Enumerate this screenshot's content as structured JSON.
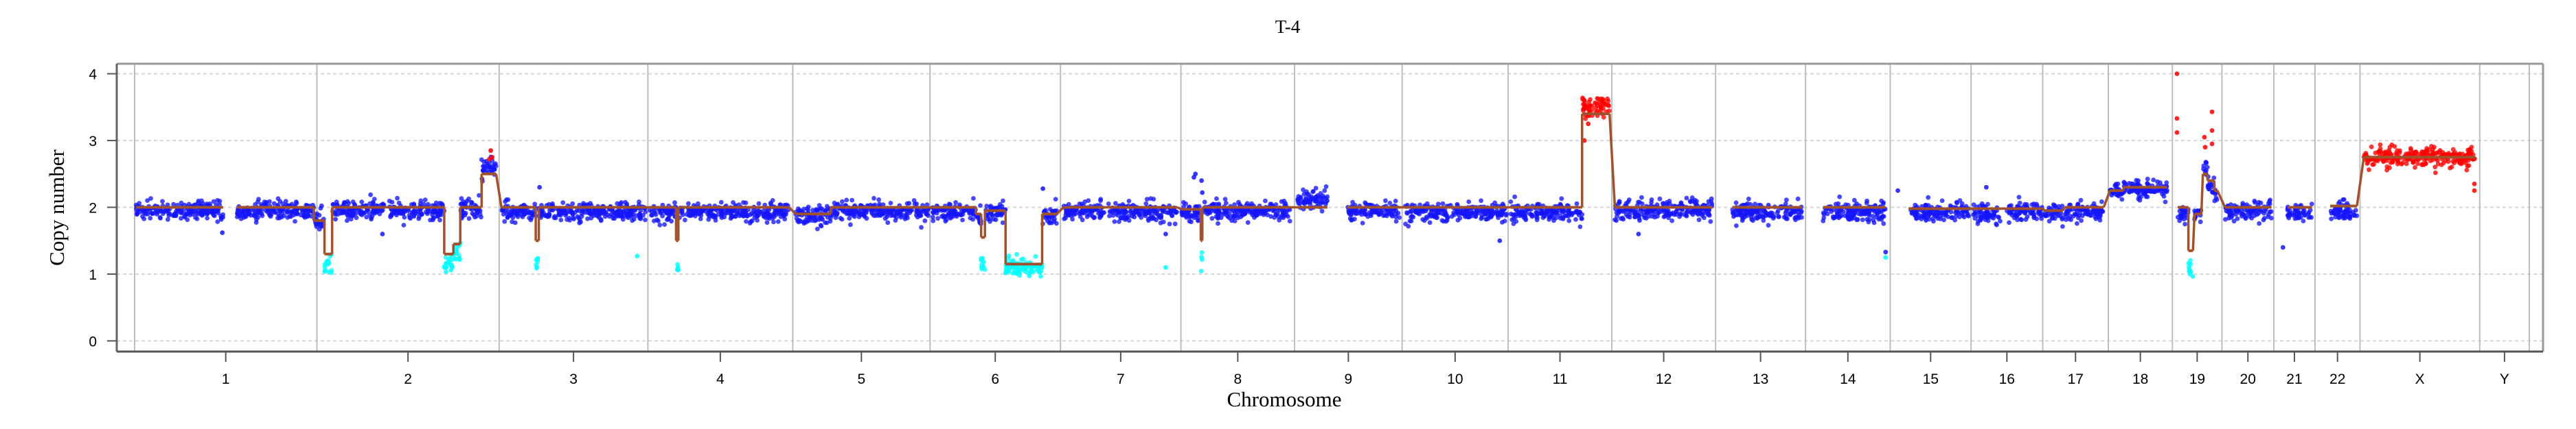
{
  "chart_data": {
    "type": "scatter",
    "title": "T-4",
    "xlabel": "Chromosome",
    "ylabel": "Copy number",
    "ylim": [
      -0.16,
      4.15
    ],
    "yticks": [
      "0",
      "1",
      "2",
      "3",
      "4"
    ],
    "grid": "horizontal dashed at y ticks",
    "colors": {
      "neutral": "#1414ff",
      "loss": "#00ffff",
      "gain": "#ff0000",
      "segment": "#a0522d",
      "chrom_line": "#bdbdbd",
      "grid": "#d6d6d6"
    },
    "chromosomes": [
      {
        "name": "1",
        "length": 239
      },
      {
        "name": "2",
        "length": 239
      },
      {
        "name": "3",
        "length": 195
      },
      {
        "name": "4",
        "length": 190
      },
      {
        "name": "5",
        "length": 180
      },
      {
        "name": "6",
        "length": 171
      },
      {
        "name": "7",
        "length": 158
      },
      {
        "name": "8",
        "length": 149
      },
      {
        "name": "9",
        "length": 141
      },
      {
        "name": "10",
        "length": 139
      },
      {
        "name": "11",
        "length": 136
      },
      {
        "name": "12",
        "length": 136
      },
      {
        "name": "13",
        "length": 118
      },
      {
        "name": "14",
        "length": 111
      },
      {
        "name": "15",
        "length": 106
      },
      {
        "name": "16",
        "length": 94
      },
      {
        "name": "17",
        "length": 86
      },
      {
        "name": "18",
        "length": 84
      },
      {
        "name": "19",
        "length": 65
      },
      {
        "name": "20",
        "length": 68
      },
      {
        "name": "21",
        "length": 54
      },
      {
        "name": "22",
        "length": 59
      },
      {
        "name": "X",
        "length": 157
      },
      {
        "name": "Y",
        "length": 65
      }
    ],
    "segments": [
      {
        "chrom": "1",
        "start": 2,
        "end": 116,
        "cn": 2.0,
        "points_mean": 1.95,
        "color": "neutral"
      },
      {
        "chrom": "1",
        "start": 134,
        "end": 235,
        "cn": 2.0,
        "points_mean": 1.95,
        "color": "neutral"
      },
      {
        "chrom": "1",
        "start": 235,
        "end": 239,
        "cn": 1.8,
        "points_mean": 1.8,
        "color": "neutral"
      },
      {
        "chrom": "2",
        "start": 0,
        "end": 10,
        "cn": 1.8,
        "points_mean": 1.8,
        "color": "neutral"
      },
      {
        "chrom": "2",
        "start": 10,
        "end": 20,
        "cn": 1.3,
        "points_mean": 1.13,
        "color": "loss"
      },
      {
        "chrom": "2",
        "start": 20,
        "end": 90,
        "cn": 2.0,
        "points_mean": 1.95,
        "color": "neutral"
      },
      {
        "chrom": "2",
        "start": 95,
        "end": 167,
        "cn": 2.0,
        "points_mean": 1.95,
        "color": "neutral"
      },
      {
        "chrom": "2",
        "start": 167,
        "end": 179,
        "cn": 1.3,
        "points_mean": 1.17,
        "color": "loss"
      },
      {
        "chrom": "2",
        "start": 179,
        "end": 188,
        "cn": 1.45,
        "points_mean": 1.3,
        "color": "loss"
      },
      {
        "chrom": "2",
        "start": 188,
        "end": 216,
        "cn": 2.0,
        "points_mean": 1.98,
        "color": "neutral"
      },
      {
        "chrom": "2",
        "start": 216,
        "end": 235,
        "cn": 2.5,
        "points_mean": 2.6,
        "color": "neutral"
      },
      {
        "chrom": "3",
        "start": 3,
        "end": 48,
        "cn": 2.0,
        "points_mean": 1.93,
        "color": "neutral"
      },
      {
        "chrom": "3",
        "start": 48,
        "end": 52,
        "cn": 1.5,
        "points_mean": 1.15,
        "color": "loss"
      },
      {
        "chrom": "3",
        "start": 52,
        "end": 192,
        "cn": 2.0,
        "points_mean": 1.93,
        "color": "neutral"
      },
      {
        "chrom": "4",
        "start": 2,
        "end": 37,
        "cn": 2.0,
        "points_mean": 1.93,
        "color": "neutral"
      },
      {
        "chrom": "4",
        "start": 37,
        "end": 40,
        "cn": 1.5,
        "points_mean": 1.15,
        "color": "loss"
      },
      {
        "chrom": "4",
        "start": 40,
        "end": 185,
        "cn": 2.0,
        "points_mean": 1.93,
        "color": "neutral"
      },
      {
        "chrom": "5",
        "start": 4,
        "end": 50,
        "cn": 1.9,
        "points_mean": 1.88,
        "color": "neutral"
      },
      {
        "chrom": "5",
        "start": 50,
        "end": 178,
        "cn": 2.0,
        "points_mean": 1.95,
        "color": "neutral"
      },
      {
        "chrom": "6",
        "start": 3,
        "end": 60,
        "cn": 2.0,
        "points_mean": 1.93,
        "color": "neutral"
      },
      {
        "chrom": "6",
        "start": 60,
        "end": 67,
        "cn": 1.9,
        "points_mean": 1.85,
        "color": "neutral"
      },
      {
        "chrom": "6",
        "start": 67,
        "end": 72,
        "cn": 1.55,
        "points_mean": 1.15,
        "color": "loss"
      },
      {
        "chrom": "6",
        "start": 72,
        "end": 99,
        "cn": 1.95,
        "points_mean": 1.93,
        "color": "neutral"
      },
      {
        "chrom": "6",
        "start": 99,
        "end": 147,
        "cn": 1.15,
        "points_mean": 1.1,
        "color": "loss"
      },
      {
        "chrom": "6",
        "start": 147,
        "end": 166,
        "cn": 1.9,
        "points_mean": 1.88,
        "color": "neutral"
      },
      {
        "chrom": "7",
        "start": 4,
        "end": 58,
        "cn": 2.0,
        "points_mean": 1.95,
        "color": "neutral"
      },
      {
        "chrom": "7",
        "start": 63,
        "end": 153,
        "cn": 2.0,
        "points_mean": 1.93,
        "color": "neutral"
      },
      {
        "chrom": "8",
        "start": 1,
        "end": 26,
        "cn": 1.97,
        "points_mean": 1.93,
        "color": "neutral"
      },
      {
        "chrom": "8",
        "start": 26,
        "end": 28,
        "cn": 1.5,
        "points_mean": 1.15,
        "color": "loss"
      },
      {
        "chrom": "8",
        "start": 28,
        "end": 143,
        "cn": 2.0,
        "points_mean": 1.95,
        "color": "neutral"
      },
      {
        "chrom": "9",
        "start": 4,
        "end": 43,
        "cn": 2.0,
        "points_mean": 2.12,
        "color": "neutral"
      },
      {
        "chrom": "9",
        "start": 69,
        "end": 139,
        "cn": 2.0,
        "points_mean": 1.95,
        "color": "neutral"
      },
      {
        "chrom": "10",
        "start": 3,
        "end": 137,
        "cn": 2.0,
        "points_mean": 1.93,
        "color": "neutral"
      },
      {
        "chrom": "11",
        "start": 3,
        "end": 97,
        "cn": 2.0,
        "points_mean": 1.93,
        "color": "neutral"
      },
      {
        "chrom": "11",
        "start": 97,
        "end": 133,
        "cn": 3.4,
        "points_mean": 3.5,
        "color": "gain"
      },
      {
        "chrom": "12",
        "start": 4,
        "end": 132,
        "cn": 2.0,
        "points_mean": 1.96,
        "color": "neutral"
      },
      {
        "chrom": "13",
        "start": 22,
        "end": 113,
        "cn": 2.0,
        "points_mean": 1.93,
        "color": "neutral"
      },
      {
        "chrom": "14",
        "start": 23,
        "end": 105,
        "cn": 2.0,
        "points_mean": 1.93,
        "color": "neutral"
      },
      {
        "chrom": "15",
        "start": 24,
        "end": 103,
        "cn": 1.98,
        "points_mean": 1.92,
        "color": "neutral"
      },
      {
        "chrom": "16",
        "start": 2,
        "end": 39,
        "cn": 1.98,
        "points_mean": 1.92,
        "color": "neutral"
      },
      {
        "chrom": "16",
        "start": 47,
        "end": 94,
        "cn": 1.98,
        "points_mean": 1.95,
        "color": "neutral"
      },
      {
        "chrom": "17",
        "start": 3,
        "end": 26,
        "cn": 1.95,
        "points_mean": 1.92,
        "color": "neutral"
      },
      {
        "chrom": "17",
        "start": 29,
        "end": 80,
        "cn": 2.0,
        "points_mean": 1.93,
        "color": "neutral"
      },
      {
        "chrom": "18",
        "start": 2,
        "end": 20,
        "cn": 2.25,
        "points_mean": 2.25,
        "color": "neutral"
      },
      {
        "chrom": "18",
        "start": 20,
        "end": 77,
        "cn": 2.3,
        "points_mean": 2.28,
        "color": "neutral"
      },
      {
        "chrom": "19",
        "start": 7,
        "end": 21,
        "cn": 2.0,
        "points_mean": 1.9,
        "color": "neutral"
      },
      {
        "chrom": "19",
        "start": 21,
        "end": 27,
        "cn": 1.35,
        "points_mean": 1.1,
        "color": "loss"
      },
      {
        "chrom": "19",
        "start": 29,
        "end": 38,
        "cn": 1.9,
        "points_mean": 1.9,
        "color": "neutral"
      },
      {
        "chrom": "19",
        "start": 40,
        "end": 46,
        "cn": 2.5,
        "points_mean": 2.6,
        "color": "neutral"
      },
      {
        "chrom": "19",
        "start": 46,
        "end": 55,
        "cn": 2.4,
        "points_mean": 2.3,
        "color": "neutral"
      },
      {
        "chrom": "19",
        "start": 55,
        "end": 59,
        "cn": 2.25,
        "points_mean": 2.2,
        "color": "neutral"
      },
      {
        "chrom": "20",
        "start": 4,
        "end": 65,
        "cn": 2.0,
        "points_mean": 1.93,
        "color": "neutral"
      },
      {
        "chrom": "21",
        "start": 18,
        "end": 50,
        "cn": 2.0,
        "points_mean": 1.93,
        "color": "neutral"
      },
      {
        "chrom": "22",
        "start": 20,
        "end": 55,
        "cn": 2.02,
        "points_mean": 1.95,
        "color": "neutral"
      },
      {
        "chrom": "X",
        "start": 5,
        "end": 151,
        "cn": 2.75,
        "points_mean": 2.75,
        "color": "gain"
      }
    ],
    "outliers": [
      {
        "chrom": "1",
        "pos": 115,
        "value": 1.62,
        "color": "neutral"
      },
      {
        "chrom": "2",
        "pos": 86,
        "value": 1.6,
        "color": "neutral"
      },
      {
        "chrom": "2",
        "pos": 228,
        "value": 2.85,
        "color": "gain"
      },
      {
        "chrom": "2",
        "pos": 226,
        "value": 2.72,
        "color": "gain"
      },
      {
        "chrom": "2",
        "pos": 230,
        "value": 2.75,
        "color": "gain"
      },
      {
        "chrom": "3",
        "pos": 53,
        "value": 2.3,
        "color": "neutral"
      },
      {
        "chrom": "3",
        "pos": 181,
        "value": 1.27,
        "color": "loss"
      },
      {
        "chrom": "6",
        "pos": 148,
        "value": 2.28,
        "color": "neutral"
      },
      {
        "chrom": "7",
        "pos": 138,
        "value": 1.1,
        "color": "loss"
      },
      {
        "chrom": "7",
        "pos": 138,
        "value": 1.6,
        "color": "neutral"
      },
      {
        "chrom": "8",
        "pos": 17,
        "value": 2.45,
        "color": "neutral"
      },
      {
        "chrom": "8",
        "pos": 19,
        "value": 2.5,
        "color": "neutral"
      },
      {
        "chrom": "8",
        "pos": 27,
        "value": 2.4,
        "color": "neutral"
      },
      {
        "chrom": "8",
        "pos": 28,
        "value": 2.22,
        "color": "neutral"
      },
      {
        "chrom": "10",
        "pos": 128,
        "value": 1.5,
        "color": "neutral"
      },
      {
        "chrom": "11",
        "pos": 100,
        "value": 3.0,
        "color": "gain"
      },
      {
        "chrom": "11",
        "pos": 105,
        "value": 3.25,
        "color": "gain"
      },
      {
        "chrom": "12",
        "pos": 35,
        "value": 1.6,
        "color": "neutral"
      },
      {
        "chrom": "14",
        "pos": 105,
        "value": 1.25,
        "color": "loss"
      },
      {
        "chrom": "14",
        "pos": 105,
        "value": 1.33,
        "color": "neutral"
      },
      {
        "chrom": "15",
        "pos": 10,
        "value": 2.25,
        "color": "neutral"
      },
      {
        "chrom": "16",
        "pos": 20,
        "value": 2.3,
        "color": "neutral"
      },
      {
        "chrom": "19",
        "pos": 6,
        "value": 4.0,
        "color": "gain"
      },
      {
        "chrom": "19",
        "pos": 6,
        "value": 3.33,
        "color": "gain"
      },
      {
        "chrom": "19",
        "pos": 6,
        "value": 3.12,
        "color": "gain"
      },
      {
        "chrom": "19",
        "pos": 42,
        "value": 3.05,
        "color": "gain"
      },
      {
        "chrom": "19",
        "pos": 43,
        "value": 2.9,
        "color": "gain"
      },
      {
        "chrom": "19",
        "pos": 52,
        "value": 3.43,
        "color": "gain"
      },
      {
        "chrom": "19",
        "pos": 52,
        "value": 3.15,
        "color": "gain"
      },
      {
        "chrom": "19",
        "pos": 52,
        "value": 2.95,
        "color": "gain"
      },
      {
        "chrom": "21",
        "pos": 12,
        "value": 1.4,
        "color": "neutral"
      },
      {
        "chrom": "X",
        "pos": 150,
        "value": 2.35,
        "color": "gain"
      },
      {
        "chrom": "X",
        "pos": 150,
        "value": 2.25,
        "color": "gain"
      }
    ],
    "point_noise_sd": 0.07,
    "points_per_mb": 1.7
  }
}
